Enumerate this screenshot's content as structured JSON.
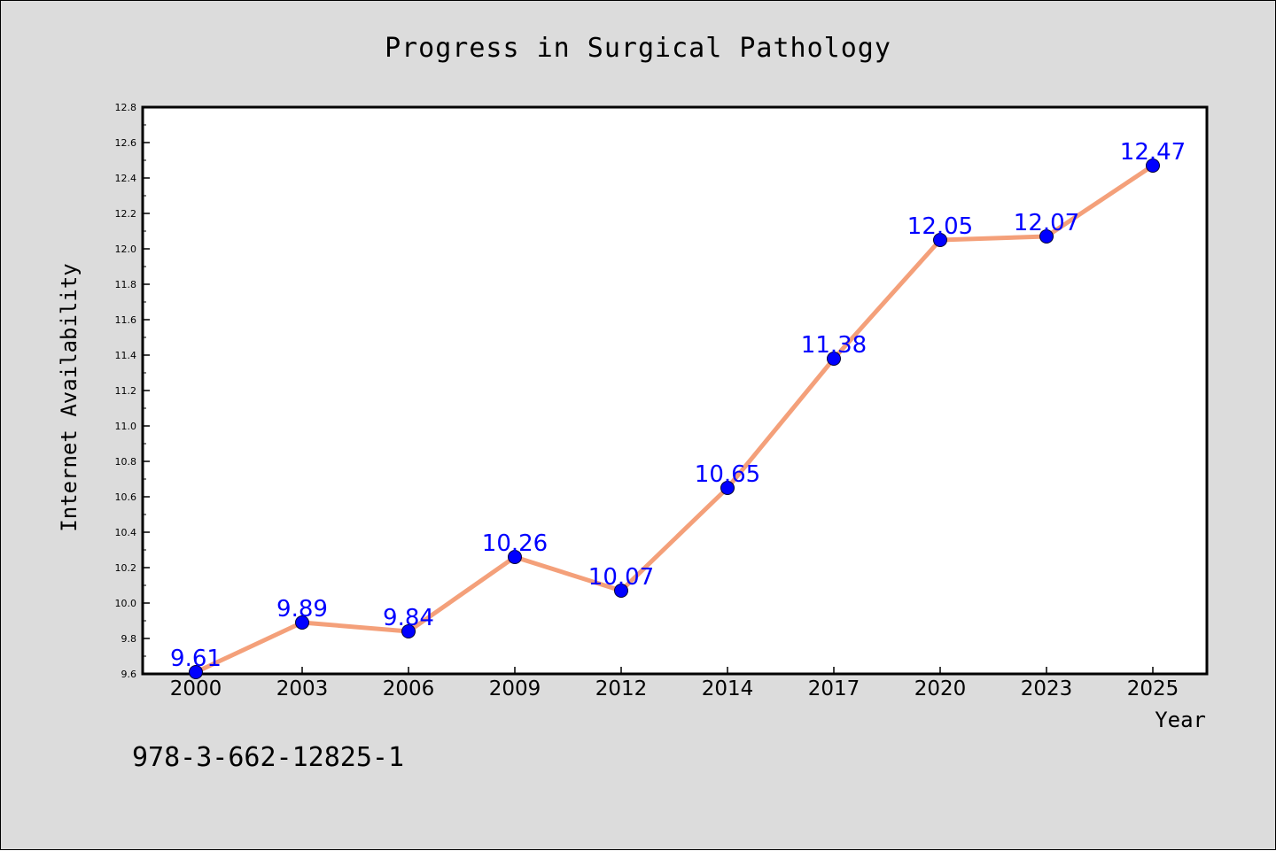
{
  "chart_data": {
    "type": "line",
    "title": "Progress in Surgical Pathology",
    "xlabel": "Year",
    "ylabel": "Internet Availability",
    "categories": [
      "2000",
      "2003",
      "2006",
      "2009",
      "2012",
      "2014",
      "2017",
      "2020",
      "2023",
      "2025"
    ],
    "series": [
      {
        "values": [
          9.61,
          9.89,
          9.84,
          10.26,
          10.07,
          10.65,
          11.38,
          12.05,
          12.07,
          12.47
        ]
      }
    ],
    "data_labels": [
      "9.61",
      "9.89",
      "9.84",
      "10.26",
      "10.07",
      "10.65",
      "11.38",
      "12.05",
      "12.07",
      "12.47"
    ],
    "ylim": [
      9.6,
      12.8
    ],
    "yticks": [
      "9.6",
      "9.8",
      "10.0",
      "10.2",
      "10.4",
      "10.6",
      "10.8",
      "11.0",
      "11.2",
      "11.4",
      "11.6",
      "11.8",
      "12.0",
      "12.2",
      "12.4",
      "12.6",
      "12.8"
    ],
    "grid": false,
    "line_color": "#f4a07a",
    "marker_color": "#0000ff",
    "label_color": "#0000ff",
    "plot_background": "#ffffff",
    "page_background": "#dcdcdc"
  },
  "footer": {
    "isbn": "978-3-662-12825-1"
  }
}
